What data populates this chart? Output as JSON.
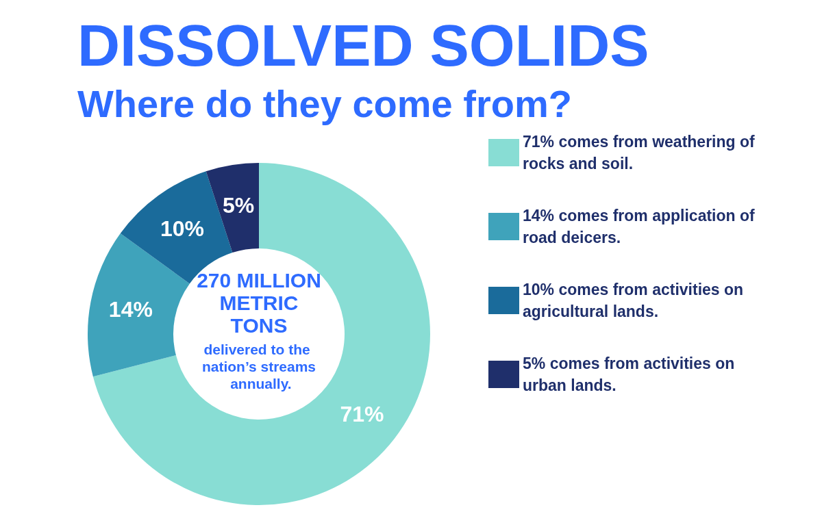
{
  "chart_data": {
    "type": "donut",
    "title": "DISSOLVED SOLIDS",
    "subtitle": "Where do they come from?",
    "categories": [
      "71% comes from weathering of rocks and soil.",
      "14% comes from application of road deicers.",
      "10% comes from activities on agricultural lands.",
      "5% comes from activities on urban lands."
    ],
    "values": [
      71,
      14,
      10,
      5
    ],
    "value_labels": [
      "71%",
      "14%",
      "10%",
      "5%"
    ],
    "colors": [
      "#88ddd4",
      "#3fa3bb",
      "#1a6b9b",
      "#1f2f6b"
    ],
    "legend": "right",
    "annotations": [
      "270 MILLION METRIC TONS",
      "delivered to the nation’s streams annually."
    ]
  }
}
